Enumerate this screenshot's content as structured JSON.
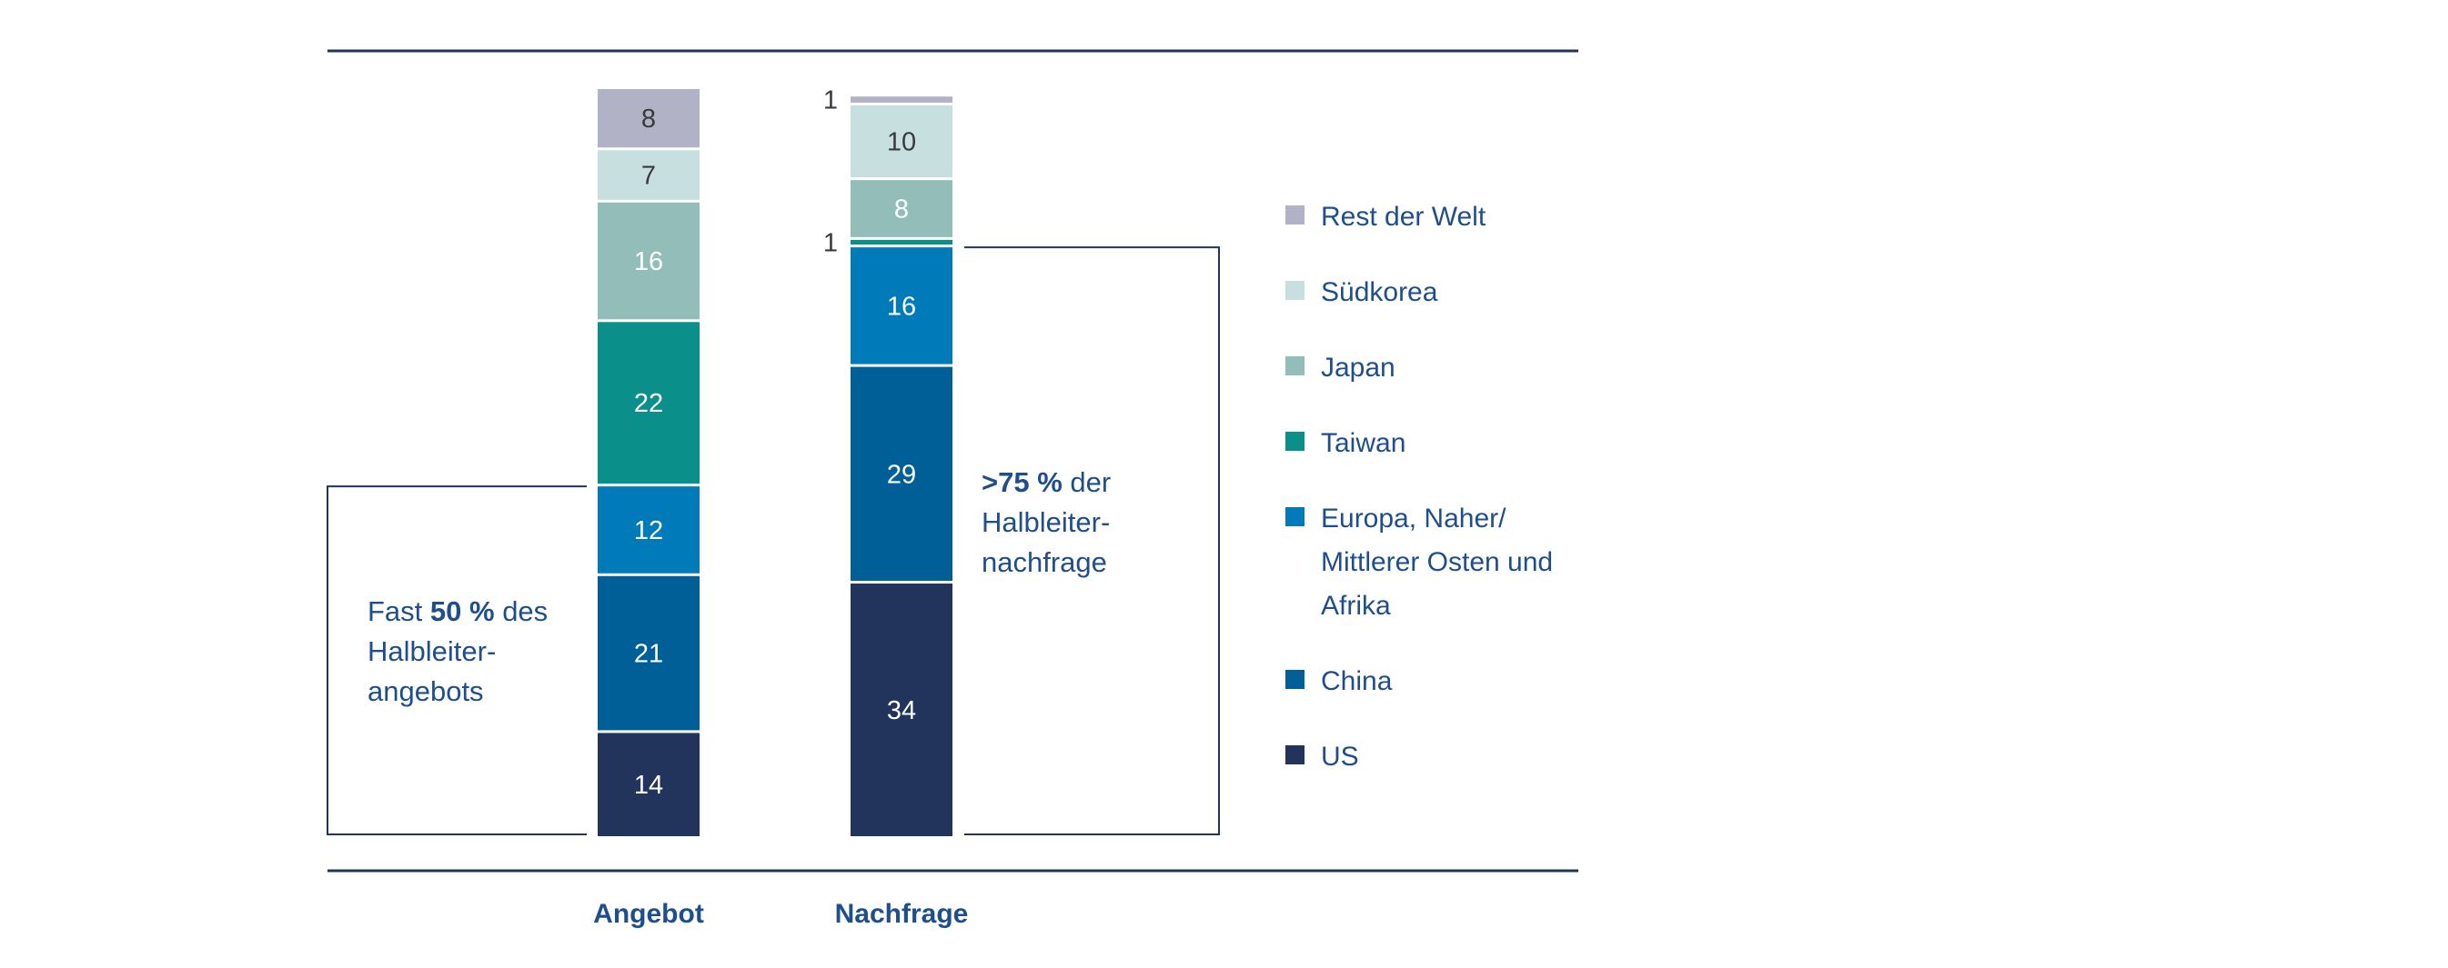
{
  "chart_data": {
    "type": "bar",
    "stacked": true,
    "unit": "%",
    "categories": [
      "Angebot",
      "Nachfrage"
    ],
    "series": [
      {
        "name": "US",
        "color": "#22345b",
        "values": [
          14,
          34
        ]
      },
      {
        "name": "China",
        "color": "#005f96",
        "values": [
          21,
          29
        ]
      },
      {
        "name": "Europa, Naher/ Mittlerer Osten und Afrika",
        "legend_lines": [
          "Europa, Naher/",
          "Mittlerer Osten und",
          "Afrika"
        ],
        "color": "#007ab8",
        "values": [
          12,
          16
        ]
      },
      {
        "name": "Taiwan",
        "color": "#0a8f8a",
        "values": [
          22,
          1
        ]
      },
      {
        "name": "Japan",
        "color": "#93bdb9",
        "values": [
          16,
          8
        ]
      },
      {
        "name": "Südkorea",
        "color": "#c8dfe0",
        "values": [
          7,
          10
        ]
      },
      {
        "name": "Rest der Welt",
        "color": "#b2b2c6",
        "values": [
          8,
          1
        ]
      }
    ],
    "annotations": [
      {
        "category": "Angebot",
        "lines": [
          [
            {
              "t": "Fast ",
              "b": false
            },
            {
              "t": "50 %",
              "b": true
            },
            {
              "t": " des",
              "b": false
            }
          ],
          [
            {
              "t": "Halbleiter-",
              "b": false
            }
          ],
          [
            {
              "t": "angebots",
              "b": false
            }
          ]
        ]
      },
      {
        "category": "Nachfrage",
        "lines": [
          [
            {
              "t": ">75 %",
              "b": true
            },
            {
              "t": " der",
              "b": false
            }
          ],
          [
            {
              "t": "Halbleiter-",
              "b": false
            }
          ],
          [
            {
              "t": "nachfrage",
              "b": false
            }
          ]
        ]
      }
    ],
    "legend_position": "right",
    "title": "",
    "xlabel": "",
    "ylabel": ""
  }
}
